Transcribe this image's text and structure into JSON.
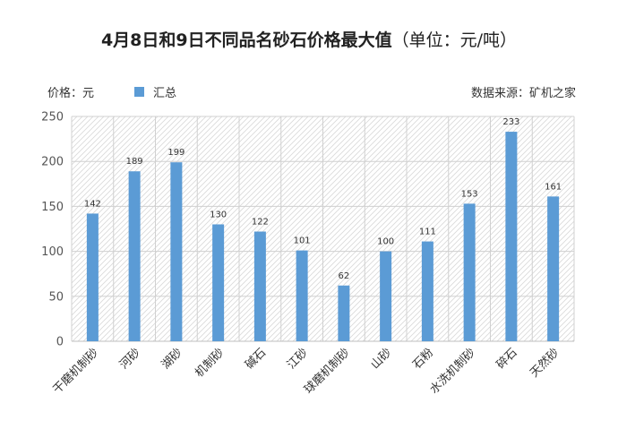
{
  "chart_data": {
    "type": "bar",
    "title": "4月8日和9日不同品名砂石价格最大值",
    "title_unit": "（单位：元/吨）",
    "price_label": "价格：元",
    "source_label": "数据来源：矿机之家",
    "legend": {
      "entries": [
        "汇总"
      ],
      "placement": "top-left"
    },
    "categories": [
      "干磨机制砂",
      "河砂",
      "湖砂",
      "机制砂",
      "碱石",
      "江砂",
      "球磨机制砂",
      "山砂",
      "石粉",
      "水洗机制砂",
      "碎石",
      "天然砂"
    ],
    "series": [
      {
        "name": "汇总",
        "values": [
          142,
          189,
          199,
          130,
          122,
          101,
          62,
          100,
          111,
          153,
          233,
          161
        ],
        "color": "#5b9bd5"
      }
    ],
    "ylim": [
      0,
      250
    ],
    "yticks": [
      0,
      50,
      100,
      150,
      200,
      250
    ],
    "grid": true,
    "background": "hatched",
    "xlabel": "",
    "ylabel": ""
  }
}
